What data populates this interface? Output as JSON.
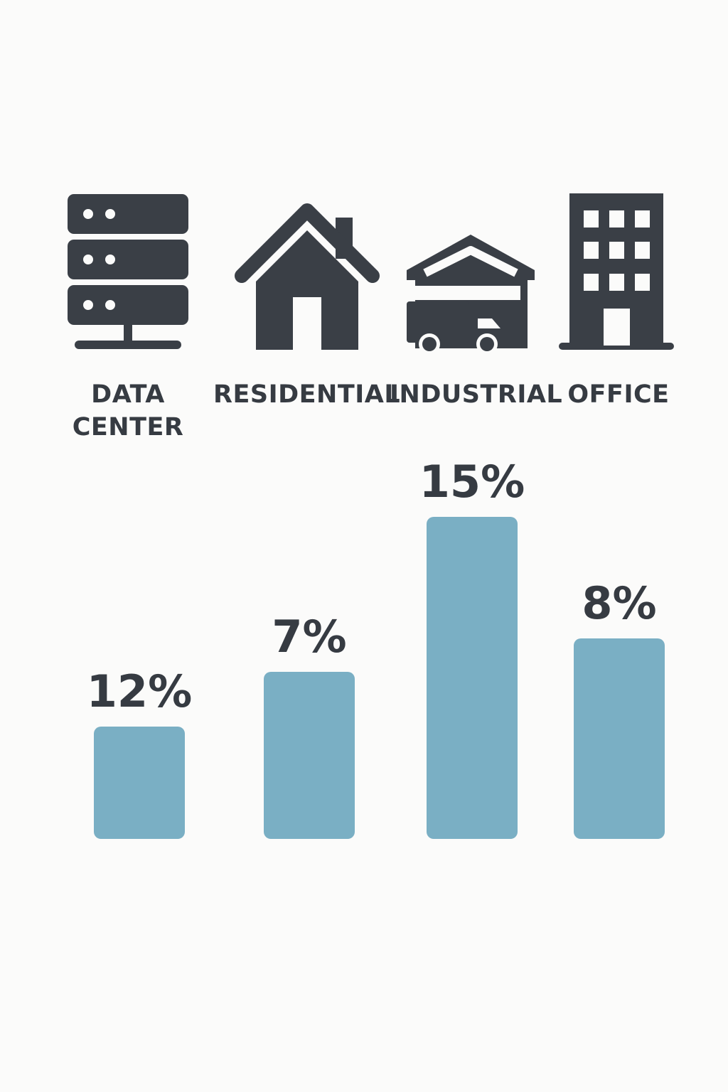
{
  "colors": {
    "bar": "#7aafc4",
    "icon": "#3a3f46",
    "text": "#363b42",
    "background": "#fbfbfa"
  },
  "icons": [
    "server-rack-icon",
    "house-icon",
    "warehouse-truck-icon",
    "office-building-icon"
  ],
  "chart_data": {
    "type": "bar",
    "categories": [
      "DATA\nCENTER",
      "RESIDENTIAL",
      "INDUSTRIAL",
      "OFFICE"
    ],
    "values": [
      12,
      7,
      15,
      8
    ],
    "value_labels": [
      "12%",
      "7%",
      "15%",
      "8%"
    ],
    "unit": "%",
    "title": "",
    "xlabel": "",
    "ylabel": "",
    "grid": false,
    "legend": "none"
  }
}
